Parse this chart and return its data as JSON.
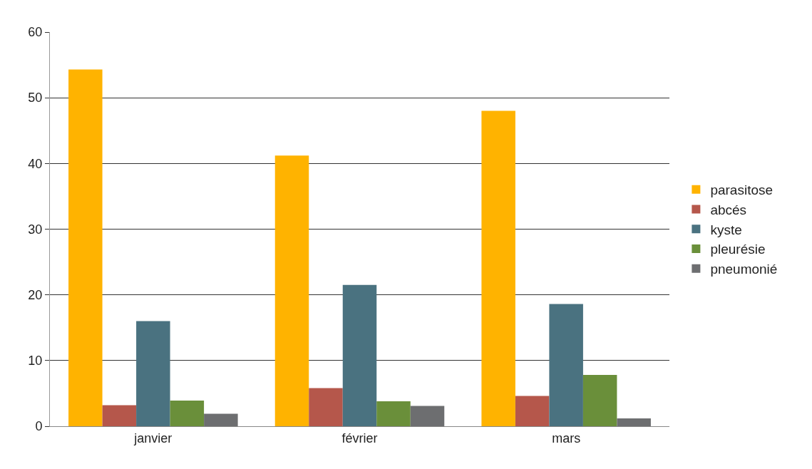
{
  "chart_data": {
    "type": "bar",
    "categories": [
      "janvier",
      "février",
      "mars"
    ],
    "series": [
      {
        "name": "parasitose",
        "color": "#ffb300",
        "values": [
          54.3,
          41.2,
          48.0
        ]
      },
      {
        "name": "abcés",
        "color": "#b5574b",
        "values": [
          3.2,
          5.8,
          4.6
        ]
      },
      {
        "name": "kyste",
        "color": "#4a7280",
        "values": [
          16.0,
          21.5,
          18.6
        ]
      },
      {
        "name": "pleurésie",
        "color": "#6a8f3a",
        "values": [
          3.9,
          3.8,
          7.8
        ]
      },
      {
        "name": "pneumonié",
        "color": "#6d6e70",
        "values": [
          1.9,
          3.1,
          1.2
        ]
      }
    ],
    "ylim": [
      0,
      60
    ],
    "yticks": [
      0,
      10,
      20,
      30,
      40,
      50,
      60
    ],
    "grid": "y",
    "legend": "right"
  }
}
